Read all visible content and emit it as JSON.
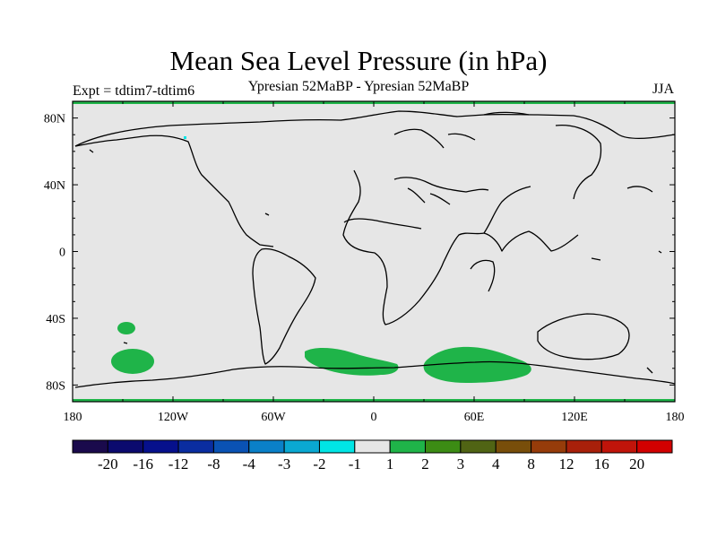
{
  "header": {
    "title": "Mean Sea Level Pressure (in hPa)",
    "subtitle": "Ypresian  52MaBP - Ypresian  52MaBP",
    "experiment": "Expt = tdtim7-tdtim6",
    "season": "JJA"
  },
  "map": {
    "projection": "equirectangular",
    "background_color": "#e6e6e6",
    "lon_labels": [
      "180",
      "120W",
      "60W",
      "0",
      "60E",
      "120E",
      "180"
    ],
    "lat_labels": [
      "80N",
      "40N",
      "0",
      "40S",
      "80S"
    ],
    "anomaly_regions": [
      {
        "label": "1 to 2 hPa",
        "region": "South Pacific near 40S-65S, 150W",
        "color": "#1fb449"
      },
      {
        "label": "1 to 2 hPa",
        "region": "South Atlantic / Weddell Sea 65S",
        "color": "#1fb449"
      },
      {
        "label": "1 to 2 hPa",
        "region": "Southern Indian Ocean 65S",
        "color": "#1fb449"
      },
      {
        "label": "-2 to -1 hPa",
        "region": "Arctic near 80N",
        "color": "#00e5e5"
      }
    ]
  },
  "colorbar": {
    "labels": [
      "-20",
      "-16",
      "-12",
      "-8",
      "-4",
      "-3",
      "-2",
      "-1",
      "1",
      "2",
      "3",
      "4",
      "8",
      "12",
      "16",
      "20"
    ],
    "colors": [
      "#1a0a4c",
      "#0b0a6e",
      "#06108c",
      "#0a2da0",
      "#0a52b4",
      "#0a80c8",
      "#0aa8d2",
      "#00e5e5",
      "#e6e6e6",
      "#1fb449",
      "#3c8c14",
      "#506414",
      "#784e0a",
      "#963c0a",
      "#a8200a",
      "#c0140a",
      "#d20000"
    ]
  }
}
